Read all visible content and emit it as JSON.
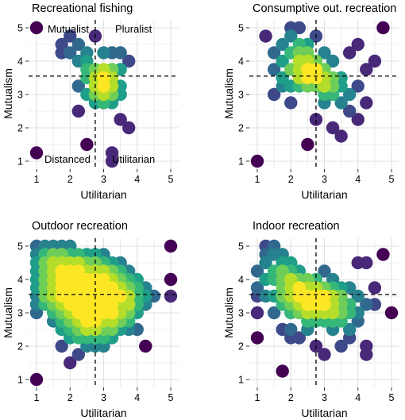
{
  "colors": {
    "panel_bg": "#ffffff",
    "grid": "#e0e0e0",
    "reference_line": "#000000",
    "viridis_low": "#440154",
    "viridis_mid": "#21908d",
    "viridis_high": "#fde725"
  },
  "chart_data": [
    {
      "type": "scatter",
      "title": "Recreational fishing",
      "xlabel": "Utilitarian",
      "ylabel": "Mutualism",
      "xlim": [
        1,
        5
      ],
      "ylim": [
        1,
        5
      ],
      "xticks": [
        "1",
        "2",
        "3",
        "4",
        "5"
      ],
      "yticks": [
        "1",
        "2",
        "3",
        "4",
        "5"
      ],
      "grid": true,
      "reference_lines": {
        "x": 2.75,
        "y": 3.55
      },
      "quadrant_labels": {
        "top_left": "Mutualist",
        "top_right": "Pluralist",
        "bottom_left": "Distanced",
        "bottom_right": "Utilitarian"
      },
      "points": [
        [
          1,
          5
        ],
        [
          1,
          1.25
        ],
        [
          1.75,
          4.25
        ],
        [
          1.75,
          4.5
        ],
        [
          2,
          4.75
        ],
        [
          2,
          4.25
        ],
        [
          2.25,
          4.5
        ],
        [
          2.25,
          4
        ],
        [
          2.5,
          4.25
        ],
        [
          2.5,
          3.75
        ],
        [
          2.25,
          3.25
        ],
        [
          2.5,
          3.5
        ],
        [
          2.5,
          3
        ],
        [
          2.25,
          2.5
        ],
        [
          2.5,
          1.5
        ],
        [
          2.75,
          3.5
        ],
        [
          2.75,
          3.25
        ],
        [
          2.75,
          3
        ],
        [
          2.75,
          2.75
        ],
        [
          2.75,
          4.75
        ],
        [
          3,
          3.5
        ],
        [
          3,
          3.25
        ],
        [
          3,
          3.75
        ],
        [
          3,
          3
        ],
        [
          3,
          4.25
        ],
        [
          3.25,
          3.5
        ],
        [
          3.25,
          3.25
        ],
        [
          3.25,
          3.75
        ],
        [
          3.25,
          3
        ],
        [
          3.25,
          2.75
        ],
        [
          3.25,
          4.25
        ],
        [
          3.5,
          4.25
        ],
        [
          3.5,
          3.75
        ],
        [
          3.5,
          3.25
        ],
        [
          3.5,
          2.25
        ],
        [
          3.75,
          2
        ],
        [
          3.75,
          4
        ],
        [
          3.25,
          1.25
        ],
        [
          3.25,
          1
        ],
        [
          2.75,
          3.75
        ],
        [
          3,
          2.75
        ],
        [
          3.5,
          3
        ],
        [
          2.5,
          4
        ]
      ]
    },
    {
      "type": "scatter",
      "title": "Consumptive out. recreation",
      "xlabel": "Utilitarian",
      "ylabel": "Mutualism",
      "xlim": [
        1,
        5
      ],
      "ylim": [
        1,
        5
      ],
      "xticks": [
        "1",
        "2",
        "3",
        "4",
        "5"
      ],
      "yticks": [
        "1",
        "2",
        "3",
        "4",
        "5"
      ],
      "grid": true,
      "reference_lines": {
        "x": 2.75,
        "y": 3.55
      },
      "points": [
        [
          1,
          1
        ],
        [
          1.25,
          4.75
        ],
        [
          1.5,
          4.25
        ],
        [
          1.5,
          3.75
        ],
        [
          1.5,
          3
        ],
        [
          1.75,
          4.5
        ],
        [
          1.75,
          4
        ],
        [
          1.75,
          3.5
        ],
        [
          2,
          4.75
        ],
        [
          2,
          4.25
        ],
        [
          2,
          3.75
        ],
        [
          2,
          3.25
        ],
        [
          2,
          2.75
        ],
        [
          2.25,
          5
        ],
        [
          2.25,
          4.5
        ],
        [
          2.25,
          4
        ],
        [
          2.25,
          3.75
        ],
        [
          2.25,
          3.5
        ],
        [
          2.5,
          4.25
        ],
        [
          2.5,
          4
        ],
        [
          2.5,
          3.75
        ],
        [
          2.5,
          3.5
        ],
        [
          2.5,
          3.25
        ],
        [
          2.5,
          1.5
        ],
        [
          2.75,
          4.75
        ],
        [
          2.75,
          4
        ],
        [
          2.75,
          3.75
        ],
        [
          2.75,
          3.5
        ],
        [
          2.75,
          2.25
        ],
        [
          3,
          4.25
        ],
        [
          3,
          3.5
        ],
        [
          3,
          3.25
        ],
        [
          3,
          3
        ],
        [
          3,
          3.75
        ],
        [
          3.25,
          3.5
        ],
        [
          3.25,
          3.25
        ],
        [
          3.25,
          3
        ],
        [
          3.25,
          2
        ],
        [
          3.25,
          4
        ],
        [
          3.5,
          3.5
        ],
        [
          3.5,
          3.25
        ],
        [
          3.5,
          2.75
        ],
        [
          3.5,
          1.75
        ],
        [
          3.75,
          4.25
        ],
        [
          3.75,
          3
        ],
        [
          3.75,
          2.5
        ],
        [
          4,
          4.5
        ],
        [
          4,
          3.25
        ],
        [
          4,
          2.25
        ],
        [
          4.25,
          3.75
        ],
        [
          4.25,
          2.75
        ],
        [
          4.5,
          4
        ],
        [
          4.75,
          5
        ],
        [
          2,
          5
        ],
        [
          1.75,
          3.25
        ],
        [
          2.25,
          3.25
        ],
        [
          3,
          2.75
        ],
        [
          2.75,
          3.25
        ],
        [
          2.5,
          4.5
        ],
        [
          2.25,
          4.25
        ]
      ]
    },
    {
      "type": "scatter",
      "title": "Outdoor recreation",
      "xlabel": "Utilitarian",
      "ylabel": "Mutualism",
      "xlim": [
        1,
        5
      ],
      "ylim": [
        1,
        5
      ],
      "xticks": [
        "1",
        "2",
        "3",
        "4",
        "5"
      ],
      "yticks": [
        "1",
        "2",
        "3",
        "4",
        "5"
      ],
      "grid": true,
      "reference_lines": {
        "x": 2.75,
        "y": 3.55
      },
      "points": [
        [
          1,
          5
        ],
        [
          1,
          4.75
        ],
        [
          1,
          4.5
        ],
        [
          1,
          4.25
        ],
        [
          1,
          4
        ],
        [
          1,
          3.75
        ],
        [
          1,
          3.5
        ],
        [
          1,
          3.25
        ],
        [
          1,
          3
        ],
        [
          1,
          1
        ],
        [
          1.25,
          5
        ],
        [
          1.25,
          4.75
        ],
        [
          1.25,
          4.5
        ],
        [
          1.25,
          4.25
        ],
        [
          1.25,
          4
        ],
        [
          1.25,
          3.75
        ],
        [
          1.25,
          3.5
        ],
        [
          1.25,
          3.25
        ],
        [
          1.5,
          5
        ],
        [
          1.5,
          4.75
        ],
        [
          1.5,
          4.5
        ],
        [
          1.5,
          4.25
        ],
        [
          1.5,
          4
        ],
        [
          1.5,
          3.75
        ],
        [
          1.5,
          3.5
        ],
        [
          1.5,
          3.25
        ],
        [
          1.5,
          3
        ],
        [
          1.5,
          2.75
        ],
        [
          1.75,
          5
        ],
        [
          1.75,
          4.75
        ],
        [
          1.75,
          4.5
        ],
        [
          1.75,
          4.25
        ],
        [
          1.75,
          4
        ],
        [
          1.75,
          3.75
        ],
        [
          1.75,
          3.5
        ],
        [
          1.75,
          3.25
        ],
        [
          1.75,
          3
        ],
        [
          1.75,
          2.75
        ],
        [
          1.75,
          2.5
        ],
        [
          1.75,
          2
        ],
        [
          2,
          5
        ],
        [
          2,
          4.75
        ],
        [
          2,
          4.5
        ],
        [
          2,
          4.25
        ],
        [
          2,
          4
        ],
        [
          2,
          3.75
        ],
        [
          2,
          3.5
        ],
        [
          2,
          3.25
        ],
        [
          2,
          3
        ],
        [
          2,
          2.75
        ],
        [
          2,
          2.5
        ],
        [
          2,
          2.25
        ],
        [
          2,
          1.5
        ],
        [
          2.25,
          4.75
        ],
        [
          2.25,
          4.5
        ],
        [
          2.25,
          4.25
        ],
        [
          2.25,
          4
        ],
        [
          2.25,
          3.75
        ],
        [
          2.25,
          3.5
        ],
        [
          2.25,
          3.25
        ],
        [
          2.25,
          3
        ],
        [
          2.25,
          2.75
        ],
        [
          2.25,
          2.5
        ],
        [
          2.25,
          2.25
        ],
        [
          2.25,
          1.75
        ],
        [
          2.5,
          4.75
        ],
        [
          2.5,
          4.5
        ],
        [
          2.5,
          4.25
        ],
        [
          2.5,
          4
        ],
        [
          2.5,
          3.75
        ],
        [
          2.5,
          3.5
        ],
        [
          2.5,
          3.25
        ],
        [
          2.5,
          3
        ],
        [
          2.5,
          2.75
        ],
        [
          2.5,
          2.5
        ],
        [
          2.5,
          2.25
        ],
        [
          2.5,
          2
        ],
        [
          2.75,
          4.75
        ],
        [
          2.75,
          4.5
        ],
        [
          2.75,
          4.25
        ],
        [
          2.75,
          4
        ],
        [
          2.75,
          3.75
        ],
        [
          2.75,
          3.5
        ],
        [
          2.75,
          3.25
        ],
        [
          2.75,
          3
        ],
        [
          2.75,
          2.75
        ],
        [
          2.75,
          2.5
        ],
        [
          2.75,
          2.25
        ],
        [
          2.75,
          2
        ],
        [
          3,
          4.75
        ],
        [
          3,
          4.5
        ],
        [
          3,
          4.25
        ],
        [
          3,
          4
        ],
        [
          3,
          3.75
        ],
        [
          3,
          3.5
        ],
        [
          3,
          3.25
        ],
        [
          3,
          3
        ],
        [
          3,
          2.75
        ],
        [
          3,
          2.5
        ],
        [
          3,
          2.25
        ],
        [
          3,
          2
        ],
        [
          3.25,
          4.5
        ],
        [
          3.25,
          4.25
        ],
        [
          3.25,
          4
        ],
        [
          3.25,
          3.75
        ],
        [
          3.25,
          3.5
        ],
        [
          3.25,
          3.25
        ],
        [
          3.25,
          3
        ],
        [
          3.25,
          2.75
        ],
        [
          3.25,
          2.5
        ],
        [
          3.25,
          2.25
        ],
        [
          3.5,
          4.5
        ],
        [
          3.5,
          4.25
        ],
        [
          3.5,
          4
        ],
        [
          3.5,
          3.75
        ],
        [
          3.5,
          3.5
        ],
        [
          3.5,
          3.25
        ],
        [
          3.5,
          3
        ],
        [
          3.5,
          2.75
        ],
        [
          3.5,
          2.5
        ],
        [
          3.75,
          4.25
        ],
        [
          3.75,
          4
        ],
        [
          3.75,
          3.75
        ],
        [
          3.75,
          3.5
        ],
        [
          3.75,
          3.25
        ],
        [
          3.75,
          3
        ],
        [
          3.75,
          2.75
        ],
        [
          3.75,
          2.5
        ],
        [
          4,
          4
        ],
        [
          4,
          3.75
        ],
        [
          4,
          3.5
        ],
        [
          4,
          3.25
        ],
        [
          4,
          3
        ],
        [
          4,
          2.5
        ],
        [
          4.25,
          3.75
        ],
        [
          4.25,
          3.5
        ],
        [
          4.25,
          3.25
        ],
        [
          4.25,
          2
        ],
        [
          4.5,
          3.5
        ],
        [
          5,
          5
        ],
        [
          5,
          4
        ],
        [
          5,
          3.5
        ]
      ]
    },
    {
      "type": "scatter",
      "title": "Indoor recreation",
      "xlabel": "Utilitarian",
      "ylabel": "Mutualism",
      "xlim": [
        1,
        5
      ],
      "ylim": [
        1,
        5
      ],
      "xticks": [
        "1",
        "2",
        "3",
        "4",
        "5"
      ],
      "yticks": [
        "1",
        "2",
        "3",
        "4",
        "5"
      ],
      "grid": true,
      "reference_lines": {
        "x": 2.75,
        "y": 3.55
      },
      "points": [
        [
          1,
          4.25
        ],
        [
          1,
          3.75
        ],
        [
          1,
          3.5
        ],
        [
          1,
          3
        ],
        [
          1,
          2.25
        ],
        [
          1.25,
          5
        ],
        [
          1.25,
          4.75
        ],
        [
          1.25,
          4.5
        ],
        [
          1.25,
          4
        ],
        [
          1.25,
          3.5
        ],
        [
          1.5,
          5
        ],
        [
          1.5,
          4.75
        ],
        [
          1.5,
          4.25
        ],
        [
          1.5,
          4
        ],
        [
          1.5,
          3.5
        ],
        [
          1.5,
          3
        ],
        [
          1.75,
          4.75
        ],
        [
          1.75,
          4.5
        ],
        [
          1.75,
          4.25
        ],
        [
          1.75,
          4
        ],
        [
          1.75,
          3.75
        ],
        [
          1.75,
          3.5
        ],
        [
          1.75,
          3.25
        ],
        [
          1.75,
          2.5
        ],
        [
          1.75,
          1.25
        ],
        [
          2,
          4.5
        ],
        [
          2,
          4.25
        ],
        [
          2,
          4
        ],
        [
          2,
          3.75
        ],
        [
          2,
          3.5
        ],
        [
          2,
          3.25
        ],
        [
          2,
          3
        ],
        [
          2,
          2.5
        ],
        [
          2,
          2.25
        ],
        [
          2.25,
          4.25
        ],
        [
          2.25,
          4
        ],
        [
          2.25,
          3.75
        ],
        [
          2.25,
          3.5
        ],
        [
          2.25,
          3.25
        ],
        [
          2.25,
          3
        ],
        [
          2.25,
          2.25
        ],
        [
          2.5,
          4
        ],
        [
          2.5,
          3.75
        ],
        [
          2.5,
          3.5
        ],
        [
          2.5,
          3.25
        ],
        [
          2.5,
          3
        ],
        [
          2.5,
          2.75
        ],
        [
          2.5,
          2.5
        ],
        [
          2.75,
          4
        ],
        [
          2.75,
          3.75
        ],
        [
          2.75,
          3.5
        ],
        [
          2.75,
          3.25
        ],
        [
          2.75,
          3
        ],
        [
          2.75,
          2.75
        ],
        [
          2.75,
          2
        ],
        [
          3,
          4.25
        ],
        [
          3,
          3.75
        ],
        [
          3,
          3.5
        ],
        [
          3,
          3.25
        ],
        [
          3,
          3
        ],
        [
          3,
          2.75
        ],
        [
          3,
          1.75
        ],
        [
          3.25,
          4
        ],
        [
          3.25,
          3.75
        ],
        [
          3.25,
          3.5
        ],
        [
          3.25,
          3.25
        ],
        [
          3.25,
          3
        ],
        [
          3.25,
          2.75
        ],
        [
          3.25,
          2.5
        ],
        [
          3.5,
          3.75
        ],
        [
          3.5,
          3.5
        ],
        [
          3.5,
          3.25
        ],
        [
          3.5,
          3
        ],
        [
          3.5,
          2.75
        ],
        [
          3.5,
          2
        ],
        [
          3.75,
          3.75
        ],
        [
          3.75,
          3.25
        ],
        [
          3.75,
          3
        ],
        [
          3.75,
          2.5
        ],
        [
          3.75,
          2.25
        ],
        [
          4,
          4.5
        ],
        [
          4,
          3.5
        ],
        [
          4,
          3
        ],
        [
          4,
          2.75
        ],
        [
          4.25,
          4.5
        ],
        [
          4.25,
          3.25
        ],
        [
          4.25,
          2
        ],
        [
          4.25,
          1.75
        ],
        [
          4.5,
          3.75
        ],
        [
          4.5,
          3.25
        ],
        [
          4.75,
          4.75
        ],
        [
          5,
          3
        ]
      ]
    }
  ]
}
